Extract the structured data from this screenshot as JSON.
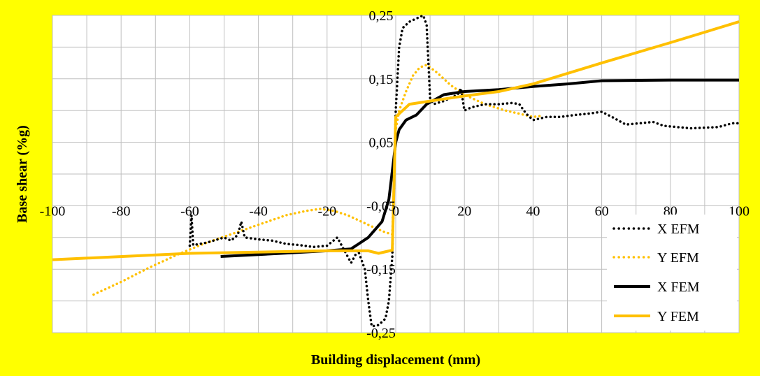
{
  "chart_data": {
    "type": "line",
    "xlabel": "Building displacement (mm)",
    "ylabel": "Base shear (%g)",
    "xlim": [
      -100,
      100
    ],
    "ylim": [
      -0.25,
      0.25
    ],
    "x_ticks": [
      "-100",
      "-80",
      "-60",
      "-40",
      "-20",
      "0",
      "20",
      "40",
      "60",
      "80",
      "100"
    ],
    "y_ticks": [
      "0,25",
      "0,15",
      "0,05",
      "-0,05",
      "-0,15",
      "-0,25"
    ],
    "grid": true,
    "legend_position": "bottom-right",
    "colors": {
      "background": "#ffff00",
      "plot_area": "#ffffff",
      "grid": "#bfbfbf",
      "black": "#000000",
      "orange": "#ffc000"
    },
    "series": [
      {
        "name": "X EFM",
        "color": "#000000",
        "style": "dotted",
        "points": [
          [
            -60,
            -0.113
          ],
          [
            -59.5,
            -0.065
          ],
          [
            -59,
            -0.112
          ],
          [
            -55,
            -0.108
          ],
          [
            -50,
            -0.1
          ],
          [
            -48,
            -0.105
          ],
          [
            -46,
            -0.096
          ],
          [
            -45,
            -0.075
          ],
          [
            -44,
            -0.1
          ],
          [
            -40,
            -0.103
          ],
          [
            -36,
            -0.105
          ],
          [
            -32,
            -0.11
          ],
          [
            -28,
            -0.112
          ],
          [
            -24,
            -0.115
          ],
          [
            -20,
            -0.113
          ],
          [
            -17,
            -0.1
          ],
          [
            -15,
            -0.12
          ],
          [
            -13,
            -0.14
          ],
          [
            -11,
            -0.12
          ],
          [
            -9,
            -0.15
          ],
          [
            -8,
            -0.2
          ],
          [
            -7,
            -0.24
          ],
          [
            -5,
            -0.238
          ],
          [
            -3,
            -0.228
          ],
          [
            -2,
            -0.2
          ],
          [
            -1,
            -0.13
          ],
          [
            0,
            0.1
          ],
          [
            1,
            0.2
          ],
          [
            2,
            0.23
          ],
          [
            4,
            0.24
          ],
          [
            6,
            0.245
          ],
          [
            8,
            0.25
          ],
          [
            9,
            0.235
          ],
          [
            10,
            0.12
          ],
          [
            11,
            0.11
          ],
          [
            14,
            0.115
          ],
          [
            18,
            0.125
          ],
          [
            19,
            0.135
          ],
          [
            20,
            0.1
          ],
          [
            22,
            0.105
          ],
          [
            26,
            0.11
          ],
          [
            30,
            0.11
          ],
          [
            34,
            0.112
          ],
          [
            36,
            0.11
          ],
          [
            38,
            0.095
          ],
          [
            40,
            0.085
          ],
          [
            44,
            0.09
          ],
          [
            48,
            0.09
          ],
          [
            52,
            0.093
          ],
          [
            56,
            0.095
          ],
          [
            60,
            0.098
          ],
          [
            63,
            0.09
          ],
          [
            67,
            0.078
          ],
          [
            71,
            0.08
          ],
          [
            75,
            0.082
          ],
          [
            78,
            0.076
          ],
          [
            82,
            0.074
          ],
          [
            86,
            0.072
          ],
          [
            90,
            0.073
          ],
          [
            94,
            0.074
          ],
          [
            98,
            0.08
          ],
          [
            100,
            0.08
          ]
        ]
      },
      {
        "name": "Y EFM",
        "color": "#ffc000",
        "style": "dotted",
        "points": [
          [
            -88,
            -0.19
          ],
          [
            -80,
            -0.17
          ],
          [
            -72,
            -0.148
          ],
          [
            -64,
            -0.128
          ],
          [
            -56,
            -0.11
          ],
          [
            -48,
            -0.095
          ],
          [
            -40,
            -0.08
          ],
          [
            -32,
            -0.065
          ],
          [
            -26,
            -0.058
          ],
          [
            -22,
            -0.055
          ],
          [
            -18,
            -0.058
          ],
          [
            -14,
            -0.065
          ],
          [
            -10,
            -0.075
          ],
          [
            -6,
            -0.085
          ],
          [
            -3,
            -0.092
          ],
          [
            -1,
            -0.095
          ],
          [
            0,
            0.07
          ],
          [
            1,
            0.1
          ],
          [
            3,
            0.13
          ],
          [
            5,
            0.155
          ],
          [
            7,
            0.168
          ],
          [
            9,
            0.172
          ],
          [
            12,
            0.16
          ],
          [
            16,
            0.14
          ],
          [
            20,
            0.125
          ],
          [
            26,
            0.11
          ],
          [
            32,
            0.1
          ],
          [
            36,
            0.095
          ],
          [
            40,
            0.09
          ],
          [
            43,
            0.092
          ]
        ]
      },
      {
        "name": "X FEM",
        "color": "#000000",
        "style": "solid",
        "points": [
          [
            -51,
            -0.13
          ],
          [
            -40,
            -0.127
          ],
          [
            -30,
            -0.124
          ],
          [
            -20,
            -0.121
          ],
          [
            -13,
            -0.118
          ],
          [
            -8,
            -0.1
          ],
          [
            -4,
            -0.075
          ],
          [
            -2,
            -0.04
          ],
          [
            0,
            0.05
          ],
          [
            1,
            0.07
          ],
          [
            3,
            0.085
          ],
          [
            6,
            0.093
          ],
          [
            9,
            0.11
          ],
          [
            14,
            0.125
          ],
          [
            20,
            0.13
          ],
          [
            30,
            0.133
          ],
          [
            40,
            0.138
          ],
          [
            50,
            0.142
          ],
          [
            60,
            0.147
          ],
          [
            80,
            0.148
          ],
          [
            100,
            0.148
          ]
        ]
      },
      {
        "name": "Y FEM",
        "color": "#ffc000",
        "style": "solid",
        "points": [
          [
            -100,
            -0.135
          ],
          [
            -60,
            -0.125
          ],
          [
            -20,
            -0.121
          ],
          [
            -8,
            -0.121
          ],
          [
            -5,
            -0.125
          ],
          [
            -1,
            -0.12
          ],
          [
            0,
            0.09
          ],
          [
            4,
            0.11
          ],
          [
            10,
            0.115
          ],
          [
            20,
            0.123
          ],
          [
            30,
            0.13
          ],
          [
            40,
            0.142
          ],
          [
            60,
            0.175
          ],
          [
            80,
            0.207
          ],
          [
            100,
            0.24
          ]
        ]
      }
    ]
  }
}
